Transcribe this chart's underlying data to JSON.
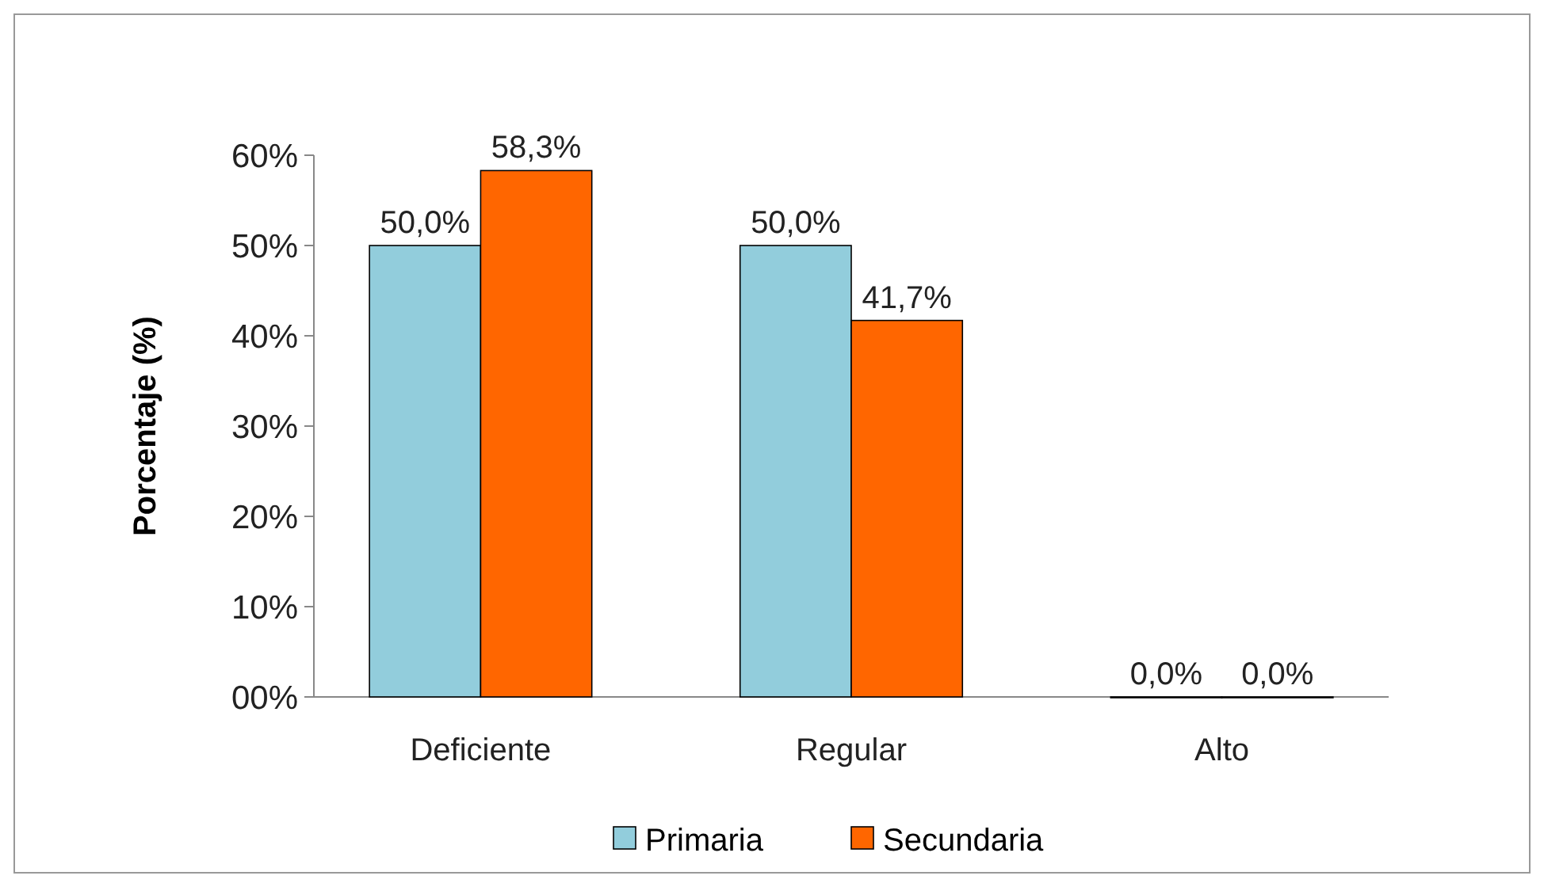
{
  "chart_data": {
    "type": "bar",
    "ylabel": "Porcentaje (%)",
    "categories": [
      "Deficiente",
      "Regular",
      "Alto"
    ],
    "series": [
      {
        "name": "Primaria",
        "color": "#92cddc",
        "values": [
          50.0,
          50.0,
          0.0
        ],
        "value_labels": [
          "50,0%",
          "50,0%",
          "0,0%"
        ]
      },
      {
        "name": "Secundaria",
        "color": "#ff6600",
        "values": [
          58.3,
          41.7,
          0.0
        ],
        "value_labels": [
          "58,3%",
          "41,7%",
          "0,0%"
        ]
      }
    ],
    "ylim": [
      0,
      60
    ],
    "yticks": [
      {
        "value": 0,
        "label": "00%"
      },
      {
        "value": 10,
        "label": "10%"
      },
      {
        "value": 20,
        "label": "20%"
      },
      {
        "value": 30,
        "label": "30%"
      },
      {
        "value": 40,
        "label": "40%"
      },
      {
        "value": 50,
        "label": "50%"
      },
      {
        "value": 60,
        "label": "60%"
      }
    ],
    "grid": false,
    "legend": "bottom"
  }
}
